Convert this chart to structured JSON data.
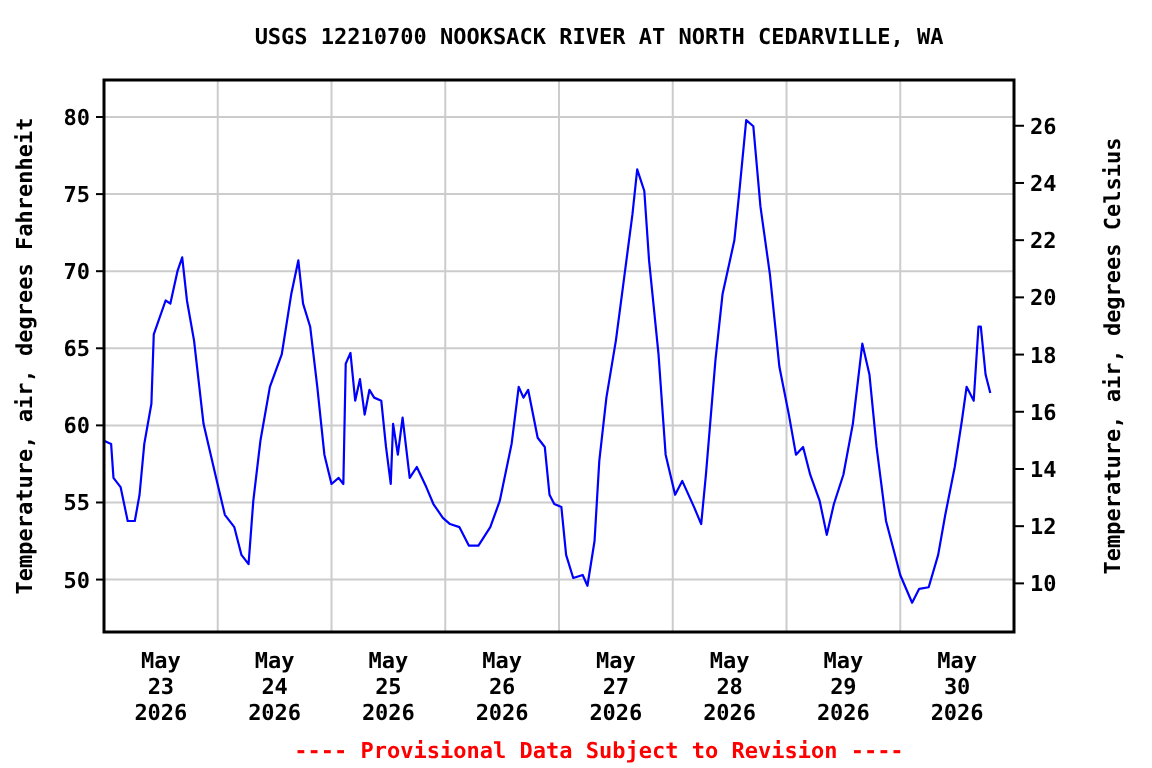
{
  "chart_data": {
    "type": "line",
    "title": "USGS 12210700 NOOKSACK RIVER AT NORTH CEDARVILLE, WA",
    "ylabel": "Temperature, air, degrees Fahrenheit",
    "y2label": "Temperature, air, degrees Celsius",
    "annotations": [
      "---- Provisional Data Subject to Revision ----"
    ],
    "xlim": [
      "2026-05-23T00:00",
      "2026-05-31T00:00"
    ],
    "xticks": [
      {
        "value": "2026-05-23T12:00",
        "label": "May 23 2026"
      },
      {
        "value": "2026-05-24T12:00",
        "label": "May 24 2026"
      },
      {
        "value": "2026-05-25T12:00",
        "label": "May 25 2026"
      },
      {
        "value": "2026-05-26T12:00",
        "label": "May 26 2026"
      },
      {
        "value": "2026-05-27T12:00",
        "label": "May 27 2026"
      },
      {
        "value": "2026-05-28T12:00",
        "label": "May 28 2026"
      },
      {
        "value": "2026-05-29T12:00",
        "label": "May 29 2026"
      },
      {
        "value": "2026-05-30T12:00",
        "label": "May 30 2026"
      },
      {
        "value": "2026-05-24T00:00",
        "label": null
      },
      {
        "value": "2026-05-25T00:00",
        "label": null
      },
      {
        "value": "2026-05-26T00:00",
        "label": null
      },
      {
        "value": "2026-05-27T00:00",
        "label": null
      },
      {
        "value": "2026-05-28T00:00",
        "label": null
      },
      {
        "value": "2026-05-29T00:00",
        "label": null
      },
      {
        "value": "2026-05-30T00:00",
        "label": null
      }
    ],
    "ylim": [
      46.6,
      82.4
    ],
    "yticks": [
      50,
      55,
      60,
      65,
      70,
      75,
      80
    ],
    "y2lim": [
      8.3,
      27.6
    ],
    "y2ticks": [
      10,
      12,
      14,
      16,
      18,
      20,
      22,
      24,
      26
    ],
    "grid": true,
    "marker": "none",
    "line_style": "solid",
    "series": [
      {
        "color": "#0000ff",
        "x": [
          "2026-05-23T00:00",
          "2026-05-23T01:30",
          "2026-05-23T02:00",
          "2026-05-23T03:30",
          "2026-05-23T05:00",
          "2026-05-23T06:30",
          "2026-05-23T07:30",
          "2026-05-23T08:30",
          "2026-05-23T10:00",
          "2026-05-23T10:30",
          "2026-05-23T13:00",
          "2026-05-23T14:00",
          "2026-05-23T15:30",
          "2026-05-23T16:30",
          "2026-05-23T17:30",
          "2026-05-23T19:00",
          "2026-05-23T21:00",
          "2026-05-23T23:30",
          "2026-05-24T01:30",
          "2026-05-24T03:30",
          "2026-05-24T05:00",
          "2026-05-24T06:30",
          "2026-05-24T07:30",
          "2026-05-24T09:00",
          "2026-05-24T11:00",
          "2026-05-24T13:30",
          "2026-05-24T15:30",
          "2026-05-24T17:00",
          "2026-05-24T18:00",
          "2026-05-24T19:30",
          "2026-05-24T21:00",
          "2026-05-24T22:30",
          "2026-05-25T00:00",
          "2026-05-25T01:30",
          "2026-05-25T02:30",
          "2026-05-25T03:00",
          "2026-05-25T04:00",
          "2026-05-25T05:00",
          "2026-05-25T06:00",
          "2026-05-25T07:00",
          "2026-05-25T08:00",
          "2026-05-25T09:00",
          "2026-05-25T10:30",
          "2026-05-25T11:30",
          "2026-05-25T12:30",
          "2026-05-25T13:00",
          "2026-05-25T14:00",
          "2026-05-25T15:00",
          "2026-05-25T16:30",
          "2026-05-25T18:00",
          "2026-05-25T20:00",
          "2026-05-25T21:30",
          "2026-05-25T23:30",
          "2026-05-26T01:00",
          "2026-05-26T03:00",
          "2026-05-26T05:00",
          "2026-05-26T07:00",
          "2026-05-26T09:30",
          "2026-05-26T11:30",
          "2026-05-26T14:00",
          "2026-05-26T15:30",
          "2026-05-26T16:30",
          "2026-05-26T17:30",
          "2026-05-26T19:30",
          "2026-05-26T21:00",
          "2026-05-26T22:00",
          "2026-05-26T23:00",
          "2026-05-27T00:30",
          "2026-05-27T01:30",
          "2026-05-27T03:00",
          "2026-05-27T05:00",
          "2026-05-27T06:00",
          "2026-05-27T07:30",
          "2026-05-27T08:30",
          "2026-05-27T10:00",
          "2026-05-27T12:00",
          "2026-05-27T13:30",
          "2026-05-27T15:30",
          "2026-05-27T16:30",
          "2026-05-27T18:00",
          "2026-05-27T19:00",
          "2026-05-27T21:00",
          "2026-05-27T22:30",
          "2026-05-28T00:30",
          "2026-05-28T02:00",
          "2026-05-28T04:30",
          "2026-05-28T06:00",
          "2026-05-28T07:00",
          "2026-05-28T09:00",
          "2026-05-28T10:30",
          "2026-05-28T13:00",
          "2026-05-28T14:00",
          "2026-05-28T15:30",
          "2026-05-28T17:00",
          "2026-05-28T18:30",
          "2026-05-28T20:30",
          "2026-05-28T22:30",
          "2026-05-29T00:30",
          "2026-05-29T02:00",
          "2026-05-29T03:30",
          "2026-05-29T05:00",
          "2026-05-29T07:00",
          "2026-05-29T08:30",
          "2026-05-29T10:00",
          "2026-05-29T12:00",
          "2026-05-29T14:00",
          "2026-05-29T16:00",
          "2026-05-29T17:30",
          "2026-05-29T19:00",
          "2026-05-29T21:00",
          "2026-05-30T00:00",
          "2026-05-30T02:30",
          "2026-05-30T04:00",
          "2026-05-30T06:00",
          "2026-05-30T08:00",
          "2026-05-30T09:30",
          "2026-05-30T11:30",
          "2026-05-30T13:00",
          "2026-05-30T14:00",
          "2026-05-30T15:30",
          "2026-05-30T16:30",
          "2026-05-30T17:00",
          "2026-05-30T18:00",
          "2026-05-30T19:00"
        ],
        "values": [
          59.0,
          58.8,
          56.6,
          56.0,
          53.8,
          53.8,
          55.5,
          58.8,
          61.4,
          65.9,
          68.1,
          67.9,
          70.0,
          70.9,
          68.1,
          65.5,
          60.1,
          56.8,
          54.2,
          53.4,
          51.6,
          51.0,
          55.1,
          59.0,
          62.5,
          64.6,
          68.5,
          70.7,
          67.9,
          66.4,
          62.5,
          58.1,
          56.2,
          56.6,
          56.2,
          64.0,
          64.7,
          61.6,
          63.0,
          60.7,
          62.3,
          61.8,
          61.6,
          58.6,
          56.2,
          60.1,
          58.1,
          60.5,
          56.6,
          57.3,
          56.0,
          54.9,
          54.0,
          53.6,
          53.4,
          52.2,
          52.2,
          53.4,
          55.1,
          58.8,
          62.5,
          61.8,
          62.3,
          59.2,
          58.6,
          55.5,
          54.9,
          54.7,
          51.6,
          50.1,
          50.3,
          49.6,
          52.5,
          57.7,
          61.8,
          65.5,
          69.0,
          73.7,
          76.6,
          75.2,
          70.7,
          64.6,
          58.1,
          55.5,
          56.4,
          54.7,
          53.6,
          56.8,
          64.2,
          68.5,
          72.0,
          75.0,
          79.8,
          79.4,
          74.2,
          69.8,
          63.8,
          60.7,
          58.1,
          58.6,
          56.8,
          55.1,
          52.9,
          54.9,
          56.8,
          60.1,
          65.3,
          63.3,
          58.6,
          53.8,
          50.3,
          48.5,
          49.4,
          49.5,
          51.6,
          54.2,
          57.3,
          60.3,
          62.5,
          61.6,
          66.4,
          66.4,
          63.3,
          62.1
        ]
      }
    ]
  }
}
